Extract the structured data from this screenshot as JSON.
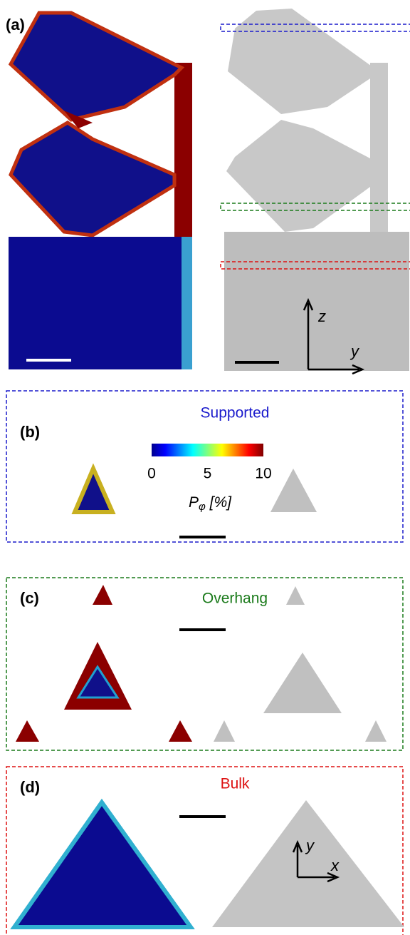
{
  "panels": {
    "a": {
      "label": "(a)",
      "axis_z": "z",
      "axis_y": "y"
    },
    "b": {
      "label": "(b)",
      "title": "Supported"
    },
    "c": {
      "label": "(c)",
      "title": "Overhang"
    },
    "d": {
      "label": "(d)",
      "title": "Bulk",
      "axis_y": "y",
      "axis_x": "x"
    }
  },
  "colorbar": {
    "ticks": [
      0,
      5,
      10
    ],
    "symbol": "P",
    "subscript": "φ",
    "unit": "[%]"
  }
}
